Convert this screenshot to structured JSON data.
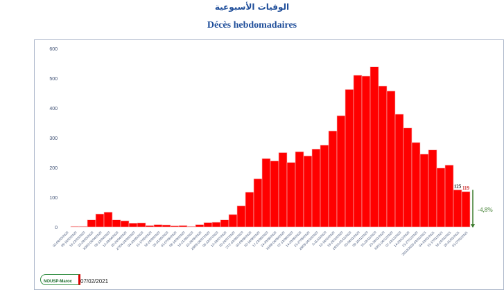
{
  "title_ar": "الوفيات الأسبوعية",
  "title_fr": "Décès hebdomadaires",
  "footer": {
    "logo_text": "NOUSP-Maroc",
    "date": "07/02/2021"
  },
  "colors": {
    "bar": "#ff0000",
    "title": "#1f4e9a",
    "arrow": "#3a7a2a",
    "axis_text": "#3d4f73"
  },
  "chart_data": {
    "type": "bar",
    "title": "Décès hebdomadaires",
    "ylim": [
      0,
      600
    ],
    "yticks": [
      0,
      100,
      200,
      300,
      400,
      500,
      600
    ],
    "grid": false,
    "categories": [
      "02-08/03/2020",
      "09-15/03/2020",
      "16-22/03/2020",
      "23-29/03/2020",
      "30/03-05/04/2020",
      "06-12/04/2020",
      "13-19/04/2020",
      "20-26/04/2020",
      "27/04-03/05/2020",
      "04-10/05/2020",
      "11-17/05/2020",
      "18-24/05/2020",
      "25-31/05/2020",
      "01-07/06/2020",
      "08-14/06/2020",
      "15-21/06/2020",
      "22-28/06/2020",
      "29/06-05/07/2020",
      "06-12/07/2020",
      "13-19/07/2020",
      "20-26/07/2020",
      "27/7-02/08/2020",
      "03-09/08/2020",
      "10-16/08/2020",
      "17-23/08/2020",
      "24-30/08/2020",
      "31/08-06/09/2020",
      "07-13/09/2020",
      "14-20/09/2020",
      "21-27/09/2020",
      "28/09-04/10/2020",
      "5-11/10/2020",
      "12-18/10/2020",
      "19-25/10/2020",
      "26/10-01/11/2020",
      "02-08/11/2020",
      "09-15/11/2020",
      "16-22/11/2020",
      "23-29/11/2020",
      "30/11-06/12/2020",
      "07-13/12/2020",
      "14-20/12/2020",
      "21-27/12/2020",
      "28/12/2020-03/01/2021",
      "04-10/01/2021",
      "11-17/01/2021",
      "18-24/01/2021",
      "25-31/01/2021",
      "01-07/02/2021"
    ],
    "values": [
      0,
      2,
      2,
      24,
      44,
      50,
      24,
      21,
      13,
      14,
      5,
      8,
      7,
      4,
      5,
      2,
      8,
      15,
      16,
      24,
      42,
      71,
      117,
      162,
      230,
      222,
      250,
      217,
      253,
      239,
      262,
      275,
      323,
      374,
      462,
      510,
      507,
      538,
      474,
      457,
      379,
      333,
      284,
      245,
      259,
      198,
      208,
      125,
      119
    ],
    "data_labels": [
      {
        "value": "125",
        "color": "#222222"
      },
      {
        "value": "119",
        "color": "#d03030"
      }
    ],
    "annotation": "-4,8%"
  }
}
